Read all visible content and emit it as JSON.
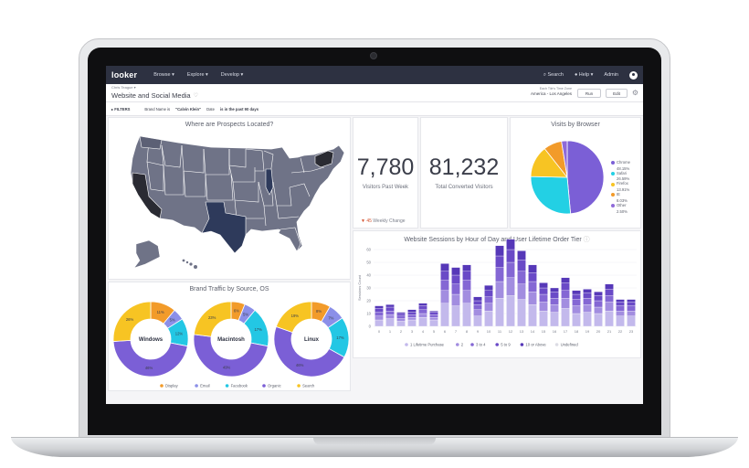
{
  "app": {
    "logo": "looker",
    "nav": [
      "Browse ▾",
      "Explore ▾",
      "Develop ▾"
    ],
    "nav_right": [
      "⌕ Search",
      "● Help ▾",
      "Admin"
    ]
  },
  "header": {
    "breadcrumb": "Chris Teague ▾",
    "title": "Website and Social Media",
    "tz_label": "Each Tile's Time Zone",
    "tz_value": "America - Los Angeles",
    "run": "Run",
    "edit": "Edit"
  },
  "filters": {
    "label": "FILTERS",
    "f1_pre": "Brand Name is",
    "f1_val": "\"Calvin Klein\"",
    "f2_pre": "Date",
    "f2_val": "is in the past 90 days"
  },
  "map": {
    "title": "Where are Prospects Located?"
  },
  "big_numbers": [
    {
      "value": "7,780",
      "label": "Visitors Past Week",
      "change_value": "45",
      "change_label": "Weekly Change"
    },
    {
      "value": "81,232",
      "label": "Total Converted Visitors"
    }
  ],
  "browsers": {
    "title": "Visits by Browser",
    "slices": [
      {
        "name": "Chrome",
        "pct": "48.15%",
        "value": 48.15,
        "color": "#7b5fd6"
      },
      {
        "name": "Safari",
        "pct": "26.59%",
        "value": 26.59,
        "color": "#23d0e4"
      },
      {
        "name": "Firefox",
        "pct": "13.91%",
        "value": 13.91,
        "color": "#f7c423"
      },
      {
        "name": "IE",
        "pct": "8.03%",
        "value": 8.03,
        "color": "#f29b2a"
      },
      {
        "name": "Other",
        "pct": "2.50%",
        "value": 2.5,
        "color": "#8f6ad9"
      }
    ]
  },
  "sessions": {
    "title": "Website Sessions by Hour of Day and User Lifetime Order Tier",
    "ylabel": "Sessions Count",
    "yticks": [
      "0",
      "10",
      "20",
      "30",
      "40",
      "50",
      "60"
    ],
    "ymax": 60,
    "hours": [
      "0",
      "1",
      "2",
      "3",
      "4",
      "5",
      "6",
      "7",
      "8",
      "9",
      "10",
      "11",
      "12",
      "13",
      "14",
      "15",
      "16",
      "17",
      "18",
      "19",
      "20",
      "21",
      "22",
      "23"
    ],
    "tiers": [
      {
        "name": "1 Lifetime Purchase",
        "color": "#c3b9ec"
      },
      {
        "name": "2",
        "color": "#a28de0"
      },
      {
        "name": "3 to 4",
        "color": "#8467d4"
      },
      {
        "name": "5 to 9",
        "color": "#6a4ac7"
      },
      {
        "name": "10 or Above",
        "color": "#5638b8"
      },
      {
        "name": "Undefined",
        "color": "#dcdce4"
      }
    ],
    "values": [
      [
        5,
        3,
        3,
        3,
        2
      ],
      [
        6,
        3,
        3,
        3,
        2
      ],
      [
        4,
        2,
        2,
        2,
        1
      ],
      [
        5,
        2,
        2,
        2,
        2
      ],
      [
        7,
        3,
        3,
        3,
        2
      ],
      [
        5,
        2,
        2,
        2,
        1
      ],
      [
        18,
        10,
        8,
        7,
        6
      ],
      [
        16,
        9,
        8,
        7,
        6
      ],
      [
        18,
        10,
        8,
        7,
        5
      ],
      [
        8,
        5,
        4,
        3,
        3
      ],
      [
        12,
        6,
        5,
        5,
        4
      ],
      [
        22,
        13,
        11,
        9,
        8
      ],
      [
        24,
        14,
        12,
        10,
        8
      ],
      [
        21,
        12,
        10,
        9,
        7
      ],
      [
        17,
        10,
        8,
        7,
        6
      ],
      [
        12,
        7,
        6,
        5,
        4
      ],
      [
        11,
        6,
        5,
        5,
        3
      ],
      [
        14,
        8,
        6,
        6,
        4
      ],
      [
        10,
        6,
        5,
        4,
        3
      ],
      [
        11,
        6,
        5,
        4,
        3
      ],
      [
        10,
        5,
        5,
        4,
        3
      ],
      [
        12,
        7,
        5,
        5,
        4
      ],
      [
        8,
        4,
        4,
        3,
        2
      ],
      [
        8,
        4,
        4,
        3,
        2
      ]
    ]
  },
  "traffic": {
    "title": "Brand Traffic by Source, OS",
    "sources": [
      {
        "name": "Display",
        "color": "#f29b2a"
      },
      {
        "name": "Email",
        "color": "#8b8fe8"
      },
      {
        "name": "Facebook",
        "color": "#23c7e4"
      },
      {
        "name": "Organic",
        "color": "#7b5fd6"
      },
      {
        "name": "Search",
        "color": "#f7c423"
      }
    ],
    "donuts": [
      {
        "name": "Windows",
        "values": [
          11,
          5,
          12,
          46,
          26
        ],
        "labels": [
          "11%",
          "5%",
          "12%",
          "46%",
          "26%"
        ]
      },
      {
        "name": "Macintosh",
        "values": [
          6,
          5,
          17,
          49,
          23
        ],
        "labels": [
          "6%",
          "5%",
          "17%",
          "49%",
          "23%"
        ]
      },
      {
        "name": "Linux",
        "values": [
          8,
          7,
          17,
          46,
          19
        ],
        "labels": [
          "8%",
          "7%",
          "17%",
          "46%",
          "19%"
        ]
      }
    ]
  }
}
